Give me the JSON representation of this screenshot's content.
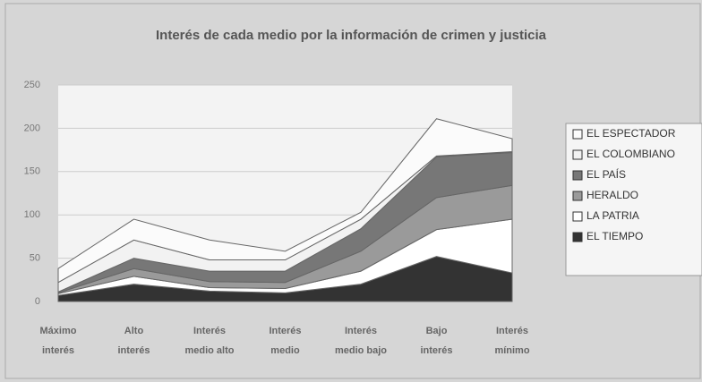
{
  "chart_data": {
    "type": "stacked-area",
    "title": "Interés de cada medio por la información de crimen y justicia",
    "categories": [
      [
        "Máximo",
        "interés"
      ],
      [
        "Alto",
        "interés"
      ],
      [
        "Interés",
        "medio alto"
      ],
      [
        "Interés",
        "medio"
      ],
      [
        "Interés",
        "medio bajo"
      ],
      [
        "Bajo",
        "interés"
      ],
      [
        "Interés",
        "mínimo"
      ]
    ],
    "series": [
      {
        "name": "EL TIEMPO",
        "color": "#333333",
        "values": [
          7,
          20,
          12,
          10,
          20,
          52,
          33
        ]
      },
      {
        "name": "LA PATRIA",
        "color": "#ffffff",
        "values": [
          2,
          9,
          4,
          5,
          15,
          31,
          62
        ]
      },
      {
        "name": "HERALDO",
        "color": "#9a9a9a",
        "values": [
          1,
          9,
          7,
          7,
          23,
          37,
          39
        ]
      },
      {
        "name": "EL PAÍS",
        "color": "#777777",
        "values": [
          1,
          12,
          12,
          13,
          26,
          47,
          38
        ]
      },
      {
        "name": "EL COLOMBIANO",
        "color": "#f2f2f2",
        "values": [
          11,
          21,
          13,
          13,
          11,
          1,
          1
        ]
      },
      {
        "name": "EL ESPECTADOR",
        "color": "#fbfbfb",
        "values": [
          16,
          24,
          23,
          10,
          8,
          43,
          15
        ]
      }
    ],
    "ylim": [
      0,
      250
    ],
    "yticks": [
      0,
      50,
      100,
      150,
      200,
      250
    ],
    "grid": true,
    "legend": "right"
  }
}
